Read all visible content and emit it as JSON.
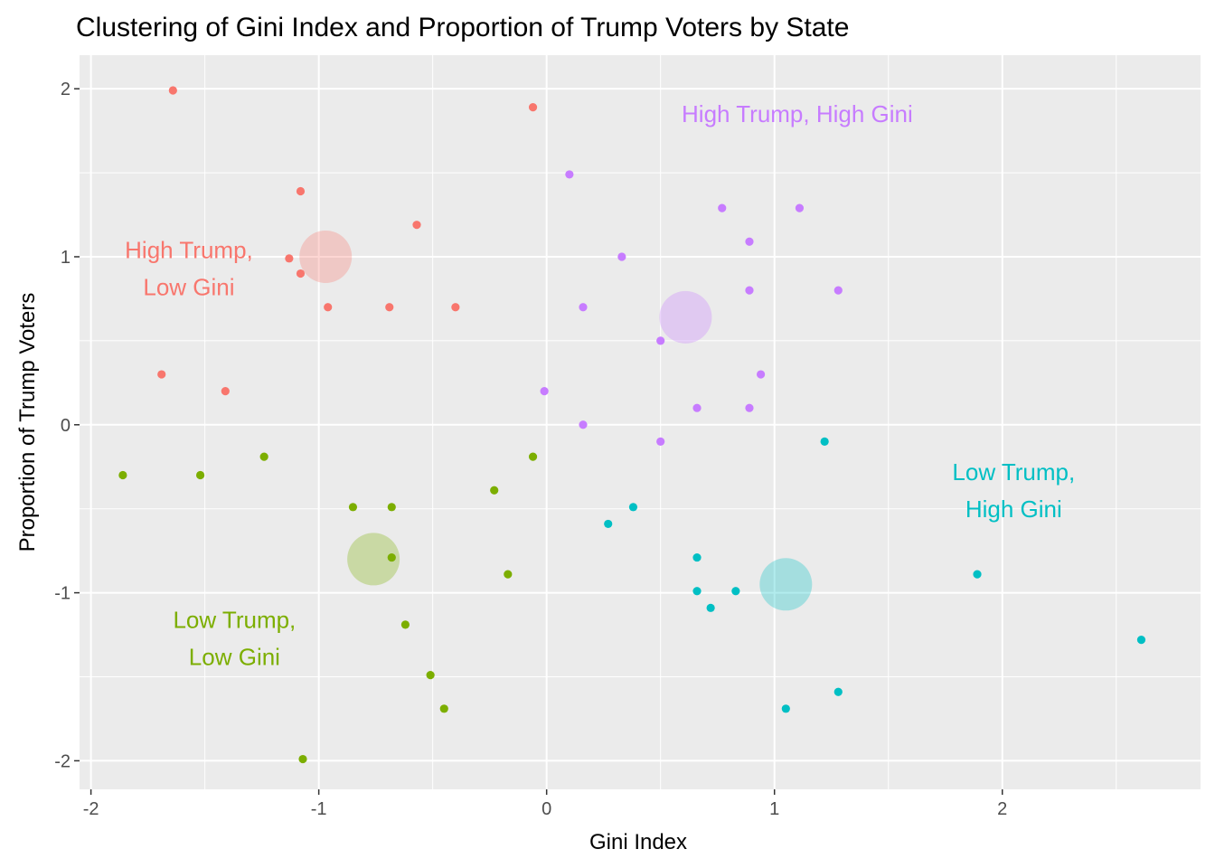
{
  "chart_data": {
    "type": "scatter",
    "title": "Clustering of Gini Index and Proportion of Trump Voters by State",
    "xlabel": "Gini Index",
    "ylabel": "Proportion of Trump Voters",
    "xlim": [
      -2.05,
      2.87
    ],
    "ylim": [
      -2.17,
      2.2
    ],
    "x_ticks": [
      -2,
      -1,
      0,
      1,
      2
    ],
    "x_tick_labels": [
      "-2",
      "-1",
      "0",
      "1",
      "2"
    ],
    "y_ticks": [
      -2,
      -1,
      0,
      1,
      2
    ],
    "y_tick_labels": [
      "-2",
      "-1",
      "0",
      "1",
      "2"
    ],
    "grid": true,
    "legend": "none",
    "clusters": [
      {
        "color": "#F8766D",
        "label_lines": [
          "High Trump,",
          "Low Gini"
        ],
        "label_pos": [
          -1.57,
          0.93
        ],
        "center": [
          -0.97,
          1.0
        ],
        "points": [
          [
            -1.64,
            1.99
          ],
          [
            -0.06,
            1.89
          ],
          [
            -1.08,
            1.39
          ],
          [
            -0.57,
            1.19
          ],
          [
            -1.13,
            0.99
          ],
          [
            -1.08,
            0.9
          ],
          [
            -0.96,
            0.7
          ],
          [
            -0.69,
            0.7
          ],
          [
            -0.4,
            0.7
          ],
          [
            -1.69,
            0.3
          ],
          [
            -1.41,
            0.2
          ]
        ]
      },
      {
        "color": "#C77CFF",
        "label_lines": [
          "High Trump, High Gini"
        ],
        "label_pos": [
          1.1,
          1.85
        ],
        "center": [
          0.61,
          0.64
        ],
        "points": [
          [
            0.1,
            1.49
          ],
          [
            0.77,
            1.29
          ],
          [
            1.11,
            1.29
          ],
          [
            0.89,
            1.09
          ],
          [
            0.33,
            1.0
          ],
          [
            0.89,
            0.8
          ],
          [
            1.28,
            0.8
          ],
          [
            0.16,
            0.7
          ],
          [
            0.5,
            0.5
          ],
          [
            0.94,
            0.3
          ],
          [
            -0.01,
            0.2
          ],
          [
            0.66,
            0.1
          ],
          [
            0.89,
            0.1
          ],
          [
            0.16,
            0.0
          ],
          [
            0.5,
            -0.1
          ]
        ]
      },
      {
        "color": "#7CAE00",
        "label_lines": [
          "Low Trump,",
          "Low Gini"
        ],
        "label_pos": [
          -1.37,
          -1.27
        ],
        "center": [
          -0.76,
          -0.8
        ],
        "points": [
          [
            -1.86,
            -0.3
          ],
          [
            -1.52,
            -0.3
          ],
          [
            -1.24,
            -0.19
          ],
          [
            -0.06,
            -0.19
          ],
          [
            -0.23,
            -0.39
          ],
          [
            -0.85,
            -0.49
          ],
          [
            -0.68,
            -0.49
          ],
          [
            -0.68,
            -0.79
          ],
          [
            -0.17,
            -0.89
          ],
          [
            -0.62,
            -1.19
          ],
          [
            -0.51,
            -1.49
          ],
          [
            -0.45,
            -1.69
          ],
          [
            -1.07,
            -1.99
          ]
        ]
      },
      {
        "color": "#00BFC4",
        "label_lines": [
          "Low Trump,",
          "High Gini"
        ],
        "label_pos": [
          2.05,
          -0.39
        ],
        "center": [
          1.05,
          -0.95
        ],
        "points": [
          [
            1.22,
            -0.1
          ],
          [
            0.38,
            -0.49
          ],
          [
            0.27,
            -0.59
          ],
          [
            0.66,
            -0.79
          ],
          [
            0.66,
            -0.99
          ],
          [
            0.83,
            -0.99
          ],
          [
            0.72,
            -1.09
          ],
          [
            1.89,
            -0.89
          ],
          [
            2.61,
            -1.28
          ],
          [
            1.28,
            -1.59
          ],
          [
            1.05,
            -1.69
          ]
        ]
      }
    ]
  }
}
